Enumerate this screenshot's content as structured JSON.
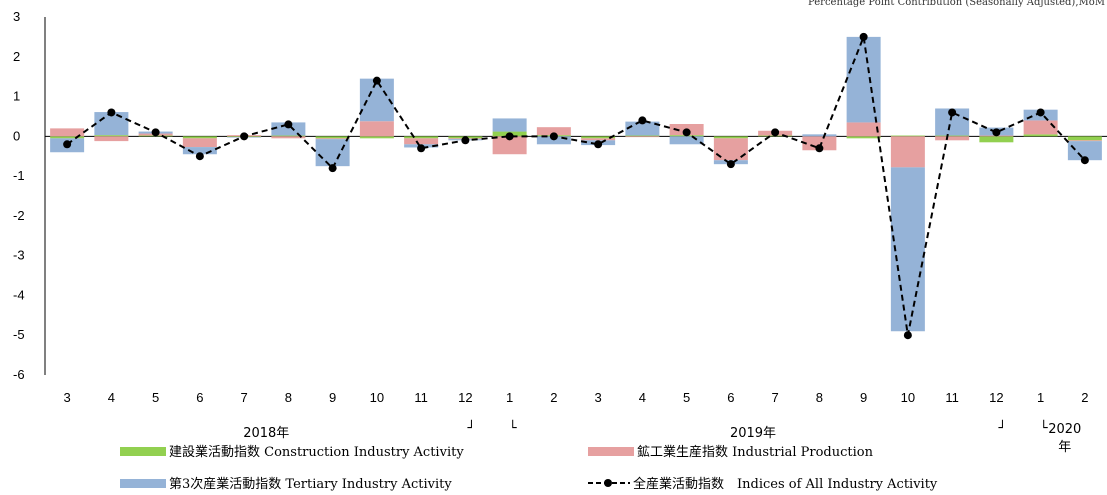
{
  "chart_data": {
    "type": "bar",
    "note": "Percentage Point Contribution (Seasonally Adjusted),MoM",
    "categories": [
      "3",
      "4",
      "5",
      "6",
      "7",
      "8",
      "9",
      "10",
      "11",
      "12",
      "1",
      "2",
      "3",
      "4",
      "5",
      "6",
      "7",
      "8",
      "9",
      "10",
      "11",
      "12",
      "1",
      "2"
    ],
    "ylim": [
      -6,
      3
    ],
    "yticks": [
      "3",
      "2",
      "1",
      "0",
      "-1",
      "-2",
      "-3",
      "-4",
      "-5",
      "-6"
    ],
    "year_labels": [
      {
        "label": "2018年",
        "start": 0,
        "end": 9
      },
      {
        "label": "2019年",
        "start": 10,
        "end": 21
      },
      {
        "label": "2020\n年",
        "start": 22,
        "end": 23
      }
    ],
    "bracket_marks": {
      "close": "┘",
      "open": "└"
    },
    "series": [
      {
        "name": "建設業活動指数 Construction Industry Activity",
        "kind": "bar",
        "color": "#92d050",
        "values": [
          -0.05,
          0.03,
          0.02,
          -0.05,
          -0.02,
          0.02,
          -0.05,
          -0.05,
          -0.05,
          -0.05,
          0.12,
          0.03,
          -0.05,
          0.02,
          0.03,
          -0.05,
          0.02,
          0.0,
          -0.05,
          0.02,
          0.02,
          -0.15,
          0.05,
          -0.1
        ]
      },
      {
        "name": "鉱工業生産指数 Industrial Production",
        "kind": "bar",
        "color": "#e6a0a0",
        "values": [
          0.2,
          -0.12,
          0.05,
          -0.22,
          0.03,
          -0.05,
          -0.02,
          0.38,
          -0.15,
          -0.02,
          -0.45,
          0.2,
          -0.05,
          -0.02,
          0.28,
          -0.55,
          0.12,
          -0.35,
          0.35,
          -0.78,
          -0.1,
          0.02,
          0.35,
          -0.02
        ]
      },
      {
        "name": "第3次産業活動指数 Tertiary Industry Activity",
        "kind": "bar",
        "color": "#95b3d7",
        "values": [
          -0.35,
          0.58,
          0.05,
          -0.18,
          -0.01,
          0.33,
          -0.68,
          1.07,
          -0.08,
          -0.03,
          0.33,
          -0.2,
          -0.12,
          0.35,
          -0.2,
          -0.1,
          0.0,
          0.05,
          2.15,
          -4.12,
          0.68,
          0.2,
          0.27,
          -0.48
        ]
      },
      {
        "name": "全産業活動指数　Indices of All Industry Activity",
        "kind": "line",
        "color": "#000000",
        "values": [
          -0.2,
          0.6,
          0.1,
          -0.5,
          0.0,
          0.3,
          -0.8,
          1.4,
          -0.3,
          -0.1,
          0.0,
          0.0,
          -0.2,
          0.4,
          0.1,
          -0.7,
          0.1,
          -0.3,
          2.5,
          -5.0,
          0.6,
          0.1,
          0.6,
          -0.6
        ]
      }
    ]
  }
}
